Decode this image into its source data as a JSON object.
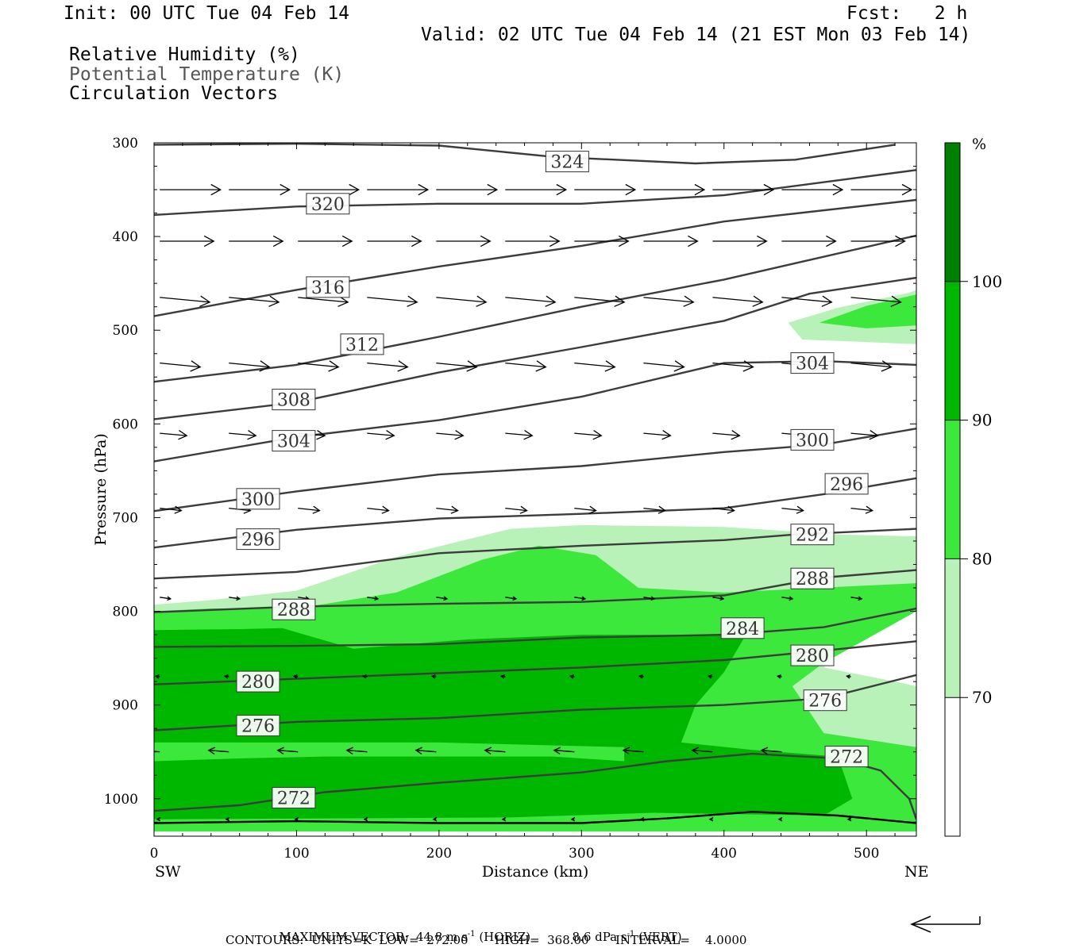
{
  "header": {
    "init": "Init: 00 UTC Tue 04 Feb 14",
    "fcst": "Fcst:   2 h",
    "valid": "Valid: 02 UTC Tue 04 Feb 14 (21 EST Mon 03 Feb 14)",
    "fields": [
      "Relative Humidity (%)",
      "Potential Temperature (K)",
      "Circulation Vectors"
    ]
  },
  "footer": {
    "max_vector_label": "MAXIMUM VECTOR:",
    "max_vector_horiz": "44.8 m s",
    "horiz_label": "(HORIZ)",
    "max_vector_vert": "8.6 dPa s",
    "vert_label": "(VERT)",
    "contours": "CONTOURS:  UNITS=K  LOW=  272.00       HIGH=  368.00       INTERVAL=    4.0000"
  },
  "colors": {
    "rh_70_80": "#b8f2b8",
    "rh_80_90": "#3de83d",
    "rh_90_100": "#00b700",
    "rh_100": "#008000",
    "theta_line": "#3c3c3c",
    "vector": "#000000"
  },
  "chart_data": {
    "type": "cross-section",
    "xlabel": "Distance (km)",
    "ylabel": "Pressure (hPa)",
    "x_left_label": "SW",
    "x_right_label": "NE",
    "xlim": [
      0,
      535
    ],
    "ylim": [
      1040,
      300
    ],
    "xticks": [
      0,
      100,
      200,
      300,
      400,
      500
    ],
    "yticks": [
      300,
      400,
      500,
      600,
      700,
      800,
      900,
      1000
    ],
    "colorbar": {
      "unit": "%",
      "levels": [
        70,
        80,
        90,
        100
      ],
      "colors": [
        "#ffffff",
        "#b8f2b8",
        "#3de83d",
        "#00b700",
        "#008000"
      ]
    },
    "rh_regions": [
      {
        "range": "70-80",
        "color": "#b8f2b8",
        "points": [
          [
            0,
            793
          ],
          [
            40,
            788
          ],
          [
            100,
            778
          ],
          [
            170,
            742
          ],
          [
            250,
            712
          ],
          [
            300,
            708
          ],
          [
            400,
            710
          ],
          [
            480,
            718
          ],
          [
            535,
            720
          ],
          [
            535,
            795
          ],
          [
            480,
            840
          ],
          [
            470,
            860
          ],
          [
            520,
            875
          ],
          [
            535,
            880
          ],
          [
            535,
            1010
          ],
          [
            0,
            1010
          ]
        ]
      },
      {
        "range": "70-80",
        "color": "#b8f2b8",
        "points": [
          [
            445,
            492
          ],
          [
            480,
            476
          ],
          [
            530,
            460
          ],
          [
            535,
            457
          ],
          [
            535,
            515
          ],
          [
            490,
            512
          ],
          [
            455,
            510
          ]
        ]
      },
      {
        "range": "80-90",
        "color": "#3de83d",
        "points": [
          [
            0,
            800
          ],
          [
            40,
            797
          ],
          [
            100,
            797
          ],
          [
            170,
            780
          ],
          [
            230,
            745
          ],
          [
            270,
            730
          ],
          [
            310,
            740
          ],
          [
            340,
            775
          ],
          [
            400,
            780
          ],
          [
            480,
            774
          ],
          [
            535,
            770
          ],
          [
            535,
            800
          ],
          [
            470,
            855
          ],
          [
            448,
            880
          ],
          [
            470,
            930
          ],
          [
            535,
            945
          ],
          [
            535,
            1035
          ],
          [
            0,
            1035
          ]
        ]
      },
      {
        "range": "80-90",
        "color": "#3de83d",
        "points": [
          [
            467,
            492
          ],
          [
            500,
            474
          ],
          [
            535,
            462
          ],
          [
            535,
            495
          ],
          [
            500,
            498
          ]
        ]
      },
      {
        "range": "90-100",
        "color": "#00b700",
        "points": [
          [
            0,
            820
          ],
          [
            60,
            819
          ],
          [
            90,
            818
          ],
          [
            140,
            840
          ],
          [
            220,
            830
          ],
          [
            300,
            825
          ],
          [
            380,
            825
          ],
          [
            415,
            826
          ],
          [
            400,
            865
          ],
          [
            380,
            900
          ],
          [
            370,
            940
          ],
          [
            420,
            948
          ],
          [
            480,
            955
          ],
          [
            490,
            1000
          ],
          [
            470,
            1018
          ],
          [
            350,
            1015
          ],
          [
            250,
            1020
          ],
          [
            0,
            1022
          ],
          [
            0,
            960
          ],
          [
            60,
            957
          ],
          [
            120,
            955
          ],
          [
            200,
            955
          ],
          [
            280,
            955
          ],
          [
            330,
            960
          ],
          [
            330,
            945
          ],
          [
            200,
            940
          ],
          [
            0,
            940
          ]
        ]
      }
    ],
    "theta_contours": [
      {
        "value": 324,
        "points": [
          [
            0,
            302
          ],
          [
            100,
            301
          ],
          [
            200,
            303
          ],
          [
            280,
            315
          ],
          [
            380,
            322
          ],
          [
            450,
            318
          ],
          [
            520,
            302
          ]
        ],
        "labels": [
          [
            290,
            320
          ]
        ]
      },
      {
        "value": 320,
        "points": [
          [
            0,
            377
          ],
          [
            100,
            368
          ],
          [
            200,
            365
          ],
          [
            300,
            365
          ],
          [
            400,
            356
          ],
          [
            535,
            329
          ]
        ],
        "labels": [
          [
            122,
            365
          ]
        ]
      },
      {
        "value": 316,
        "points": [
          [
            0,
            485
          ],
          [
            100,
            457
          ],
          [
            200,
            432
          ],
          [
            300,
            410
          ],
          [
            400,
            384
          ],
          [
            535,
            361
          ]
        ],
        "labels": [
          [
            122,
            454
          ]
        ]
      },
      {
        "value": 312,
        "points": [
          [
            0,
            555
          ],
          [
            100,
            537
          ],
          [
            200,
            507
          ],
          [
            300,
            475
          ],
          [
            400,
            446
          ],
          [
            535,
            399
          ]
        ],
        "labels": [
          [
            146,
            515
          ]
        ]
      },
      {
        "value": 308,
        "points": [
          [
            0,
            595
          ],
          [
            100,
            577
          ],
          [
            200,
            545
          ],
          [
            300,
            518
          ],
          [
            400,
            490
          ],
          [
            460,
            461
          ],
          [
            535,
            444
          ]
        ],
        "labels": [
          [
            98,
            574
          ]
        ]
      },
      {
        "value": 304,
        "points": [
          [
            0,
            640
          ],
          [
            100,
            614
          ],
          [
            200,
            596
          ],
          [
            300,
            571
          ],
          [
            400,
            535
          ],
          [
            470,
            533
          ],
          [
            535,
            537
          ]
        ],
        "labels": [
          [
            98,
            618
          ],
          [
            462,
            535
          ]
        ]
      },
      {
        "value": 300,
        "points": [
          [
            0,
            693
          ],
          [
            100,
            672
          ],
          [
            200,
            654
          ],
          [
            300,
            645
          ],
          [
            400,
            630
          ],
          [
            470,
            622
          ],
          [
            535,
            605
          ]
        ],
        "labels": [
          [
            73,
            680
          ],
          [
            462,
            617
          ]
        ]
      },
      {
        "value": 296,
        "points": [
          [
            0,
            732
          ],
          [
            100,
            713
          ],
          [
            200,
            701
          ],
          [
            300,
            696
          ],
          [
            400,
            690
          ],
          [
            470,
            675
          ],
          [
            535,
            658
          ]
        ],
        "labels": [
          [
            73,
            723
          ],
          [
            486,
            664
          ]
        ]
      },
      {
        "value": 292,
        "points": [
          [
            0,
            765
          ],
          [
            100,
            758
          ],
          [
            200,
            738
          ],
          [
            300,
            730
          ],
          [
            400,
            724
          ],
          [
            450,
            718
          ],
          [
            535,
            712
          ]
        ],
        "labels": [
          [
            462,
            718
          ]
        ]
      },
      {
        "value": 288,
        "points": [
          [
            0,
            801
          ],
          [
            100,
            795
          ],
          [
            200,
            792
          ],
          [
            300,
            790
          ],
          [
            400,
            783
          ],
          [
            470,
            764
          ],
          [
            535,
            756
          ]
        ],
        "labels": [
          [
            98,
            798
          ],
          [
            462,
            765
          ]
        ]
      },
      {
        "value": 284,
        "points": [
          [
            0,
            838
          ],
          [
            100,
            837
          ],
          [
            200,
            835
          ],
          [
            300,
            828
          ],
          [
            400,
            825
          ],
          [
            470,
            817
          ],
          [
            535,
            797
          ]
        ],
        "labels": [
          [
            413,
            818
          ]
        ]
      },
      {
        "value": 280,
        "points": [
          [
            0,
            878
          ],
          [
            100,
            872
          ],
          [
            200,
            866
          ],
          [
            300,
            860
          ],
          [
            400,
            852
          ],
          [
            470,
            842
          ],
          [
            535,
            832
          ]
        ],
        "labels": [
          [
            73,
            875
          ],
          [
            462,
            847
          ]
        ]
      },
      {
        "value": 276,
        "points": [
          [
            0,
            927
          ],
          [
            100,
            918
          ],
          [
            200,
            914
          ],
          [
            300,
            905
          ],
          [
            400,
            900
          ],
          [
            470,
            893
          ],
          [
            535,
            868
          ]
        ],
        "labels": [
          [
            73,
            922
          ],
          [
            471,
            895
          ]
        ]
      },
      {
        "value": 272,
        "points": [
          [
            0,
            1013
          ],
          [
            60,
            1007
          ],
          [
            120,
            993
          ],
          [
            200,
            983
          ],
          [
            300,
            972
          ],
          [
            360,
            960
          ],
          [
            420,
            952
          ],
          [
            480,
            957
          ],
          [
            510,
            970
          ],
          [
            530,
            1000
          ],
          [
            535,
            1022
          ]
        ],
        "labels": [
          [
            98,
            999
          ],
          [
            486,
            955
          ]
        ]
      }
    ],
    "surface_line": [
      [
        0,
        1026
      ],
      [
        100,
        1024
      ],
      [
        200,
        1026
      ],
      [
        300,
        1026
      ],
      [
        360,
        1021
      ],
      [
        420,
        1014
      ],
      [
        480,
        1018
      ],
      [
        535,
        1026
      ]
    ],
    "vectors": [
      {
        "p": 350,
        "x0": 0,
        "u": 45,
        "v": 0
      },
      {
        "p": 405,
        "x0": 0,
        "u": 40,
        "v": 0
      },
      {
        "p": 465,
        "x0": 0,
        "u": 37,
        "v": -6
      },
      {
        "p": 535,
        "x0": 0,
        "u": 30,
        "v": -5
      },
      {
        "p": 610,
        "x0": 0,
        "u": 20,
        "v": -3
      },
      {
        "p": 690,
        "x0": 0,
        "u": 16,
        "v": -3
      },
      {
        "p": 785,
        "x0": 0,
        "u": 8,
        "v": -2
      },
      {
        "p": 870,
        "x0": 0,
        "u": -3,
        "v": 1
      },
      {
        "p": 950,
        "x0": 0,
        "u": -15,
        "v": 2
      },
      {
        "p": 1022,
        "x0": 0,
        "u": -2,
        "v": 0
      }
    ]
  }
}
